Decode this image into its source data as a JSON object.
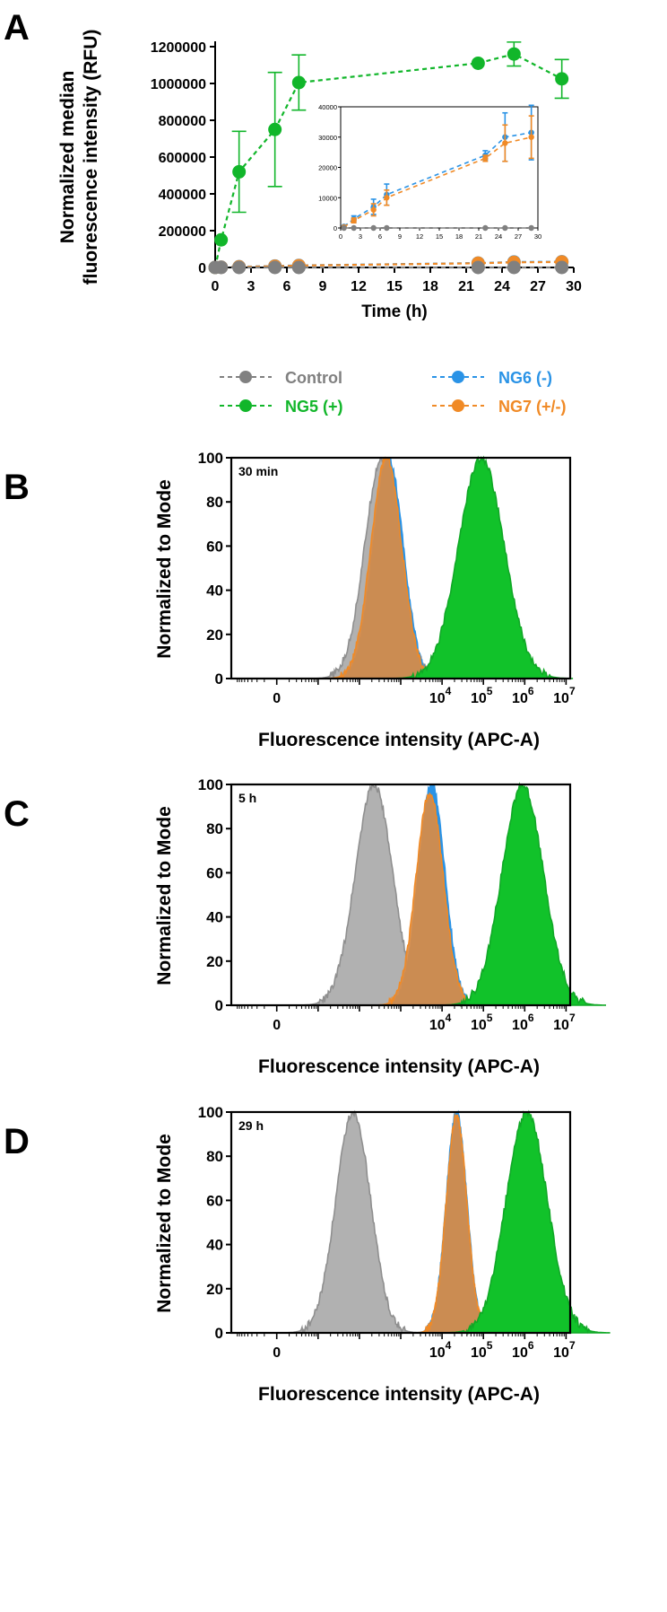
{
  "colors": {
    "control": "#808080",
    "ng5": "#11b62a",
    "ng6": "#2a93e6",
    "ng7": "#f08a26",
    "control_fill": "#a8a8a8",
    "ng6_fill": "#2a93e6",
    "ng7_fill": "#d98b45",
    "ng5_fill": "#11c22a"
  },
  "legend": {
    "control": "Control",
    "ng5": "NG5 (+)",
    "ng6": "NG6 (-)",
    "ng7": "NG7 (+/-)"
  },
  "chart_data": [
    {
      "panel": "A",
      "type": "line",
      "xlabel": "Time (h)",
      "ylabel_lines": [
        "Normalized median",
        "fluorescence intensity (RFU)"
      ],
      "xlim": [
        0,
        30
      ],
      "ylim": [
        0,
        1200000
      ],
      "xticks": [
        0,
        3,
        6,
        9,
        12,
        15,
        18,
        21,
        24,
        27,
        30
      ],
      "yticks": [
        0,
        200000,
        400000,
        600000,
        800000,
        1000000,
        1200000
      ],
      "series": [
        {
          "name": "NG5 (+)",
          "key": "ng5",
          "points": [
            [
              0,
              0,
              0
            ],
            [
              0.5,
              150000,
              0
            ],
            [
              2,
              520000,
              220000
            ],
            [
              5,
              750000,
              310000
            ],
            [
              7,
              1005000,
              150000
            ],
            [
              22,
              1110000,
              0
            ],
            [
              25,
              1160000,
              65000
            ],
            [
              29,
              1025000,
              105000
            ]
          ]
        },
        {
          "name": "NG6 (-)",
          "key": "ng6",
          "points": [
            [
              0,
              0,
              0
            ],
            [
              0.5,
              2000,
              0
            ],
            [
              2,
              4000,
              0
            ],
            [
              5,
              8000,
              0
            ],
            [
              7,
              11000,
              0
            ],
            [
              22,
              24000,
              0
            ],
            [
              25,
              30000,
              0
            ],
            [
              29,
              31000,
              0
            ]
          ]
        },
        {
          "name": "NG7 (+/-)",
          "key": "ng7",
          "points": [
            [
              0,
              0,
              0
            ],
            [
              0.5,
              1500,
              0
            ],
            [
              2,
              3500,
              0
            ],
            [
              5,
              7000,
              0
            ],
            [
              7,
              10000,
              0
            ],
            [
              22,
              23000,
              0
            ],
            [
              25,
              28000,
              0
            ],
            [
              29,
              30000,
              0
            ]
          ]
        },
        {
          "name": "Control",
          "key": "control",
          "points": [
            [
              0,
              0,
              0
            ],
            [
              0.5,
              0,
              0
            ],
            [
              2,
              0,
              0
            ],
            [
              5,
              0,
              0
            ],
            [
              7,
              0,
              0
            ],
            [
              22,
              0,
              0
            ],
            [
              25,
              0,
              0
            ],
            [
              29,
              0,
              0
            ]
          ]
        }
      ],
      "inset": {
        "xlim": [
          0,
          30
        ],
        "ylim": [
          0,
          40000
        ],
        "xticks": [
          0,
          3,
          6,
          9,
          12,
          15,
          18,
          21,
          24,
          27,
          30
        ],
        "yticks": [
          0,
          10000,
          20000,
          30000,
          40000
        ],
        "series": [
          {
            "name": "NG6 (-)",
            "key": "ng6",
            "points": [
              [
                0.5,
                500,
                0
              ],
              [
                2,
                3000,
                1000
              ],
              [
                5,
                7000,
                2500
              ],
              [
                7,
                11000,
                3500
              ],
              [
                22,
                24000,
                1500
              ],
              [
                25,
                30000,
                8000
              ],
              [
                29,
                31500,
                9000
              ]
            ]
          },
          {
            "name": "NG7 (+/-)",
            "key": "ng7",
            "points": [
              [
                0.5,
                300,
                0
              ],
              [
                2,
                2500,
                800
              ],
              [
                5,
                6000,
                2000
              ],
              [
                7,
                10000,
                2500
              ],
              [
                22,
                23000,
                1000
              ],
              [
                25,
                28000,
                6000
              ],
              [
                29,
                30000,
                7000
              ]
            ]
          },
          {
            "name": "Control",
            "key": "control",
            "points": [
              [
                0.5,
                0,
                0
              ],
              [
                2,
                0,
                0
              ],
              [
                5,
                0,
                0
              ],
              [
                7,
                0,
                0
              ],
              [
                22,
                0,
                0
              ],
              [
                25,
                0,
                0
              ],
              [
                29,
                0,
                0
              ]
            ]
          }
        ]
      }
    },
    {
      "panel": "B",
      "type": "area",
      "annotation": "30 min",
      "xlabel": "Fluorescence intensity (APC-A)",
      "ylabel": "Normalized to Mode",
      "ylim": [
        0,
        100
      ],
      "yticks": [
        0,
        20,
        40,
        60,
        80,
        100
      ],
      "xlim_decades": [
        -1.1,
        7.1
      ],
      "xtick_labels": [
        {
          "pos": 0,
          "base": "0",
          "exp": ""
        },
        {
          "pos": 4,
          "base": "10",
          "exp": "4"
        },
        {
          "pos": 5,
          "base": "10",
          "exp": "5"
        },
        {
          "pos": 6,
          "base": "10",
          "exp": "6"
        },
        {
          "pos": 7,
          "base": "10",
          "exp": "7"
        }
      ],
      "histograms": [
        {
          "key": "control",
          "name": "Control",
          "center": 2.55,
          "width": 0.42,
          "height": 100
        },
        {
          "key": "ng6",
          "name": "NG6 (-)",
          "center": 2.7,
          "width": 0.36,
          "height": 100
        },
        {
          "key": "ng7",
          "name": "NG7 (+/-)",
          "center": 2.65,
          "width": 0.37,
          "height": 100
        },
        {
          "key": "ng5",
          "name": "NG5 (+)",
          "center": 4.95,
          "width": 0.55,
          "height": 100
        }
      ]
    },
    {
      "panel": "C",
      "type": "area",
      "annotation": "5 h",
      "xlabel": "Fluorescence intensity (APC-A)",
      "ylabel": "Normalized to Mode",
      "ylim": [
        0,
        100
      ],
      "yticks": [
        0,
        20,
        40,
        60,
        80,
        100
      ],
      "xlim_decades": [
        -1.1,
        7.1
      ],
      "xtick_labels": [
        {
          "pos": 0,
          "base": "0",
          "exp": ""
        },
        {
          "pos": 4,
          "base": "10",
          "exp": "4"
        },
        {
          "pos": 5,
          "base": "10",
          "exp": "5"
        },
        {
          "pos": 6,
          "base": "10",
          "exp": "6"
        },
        {
          "pos": 7,
          "base": "10",
          "exp": "7"
        }
      ],
      "histograms": [
        {
          "key": "control",
          "name": "Control",
          "center": 2.35,
          "width": 0.45,
          "height": 100
        },
        {
          "key": "ng6",
          "name": "NG6 (-)",
          "center": 3.75,
          "width": 0.32,
          "height": 100
        },
        {
          "key": "ng7",
          "name": "NG7 (+/-)",
          "center": 3.7,
          "width": 0.33,
          "height": 96
        },
        {
          "key": "ng5",
          "name": "NG5 (+)",
          "center": 5.95,
          "width": 0.5,
          "height": 100
        }
      ]
    },
    {
      "panel": "D",
      "type": "area",
      "annotation": "29 h",
      "xlabel": "Fluorescence intensity (APC-A)",
      "ylabel": "Normalized to Mode",
      "ylim": [
        0,
        100
      ],
      "yticks": [
        0,
        20,
        40,
        60,
        80,
        100
      ],
      "xlim_decades": [
        -1.1,
        7.1
      ],
      "xtick_labels": [
        {
          "pos": 0,
          "base": "0",
          "exp": ""
        },
        {
          "pos": 4,
          "base": "10",
          "exp": "4"
        },
        {
          "pos": 5,
          "base": "10",
          "exp": "5"
        },
        {
          "pos": 6,
          "base": "10",
          "exp": "6"
        },
        {
          "pos": 7,
          "base": "10",
          "exp": "7"
        }
      ],
      "histograms": [
        {
          "key": "control",
          "name": "Control",
          "center": 1.85,
          "width": 0.42,
          "height": 100
        },
        {
          "key": "ng6",
          "name": "NG6 (-)",
          "center": 4.35,
          "width": 0.25,
          "height": 100
        },
        {
          "key": "ng7",
          "name": "NG7 (+/-)",
          "center": 4.35,
          "width": 0.25,
          "height": 98
        },
        {
          "key": "ng5",
          "name": "NG5 (+)",
          "center": 6.05,
          "width": 0.5,
          "height": 100
        }
      ]
    }
  ]
}
